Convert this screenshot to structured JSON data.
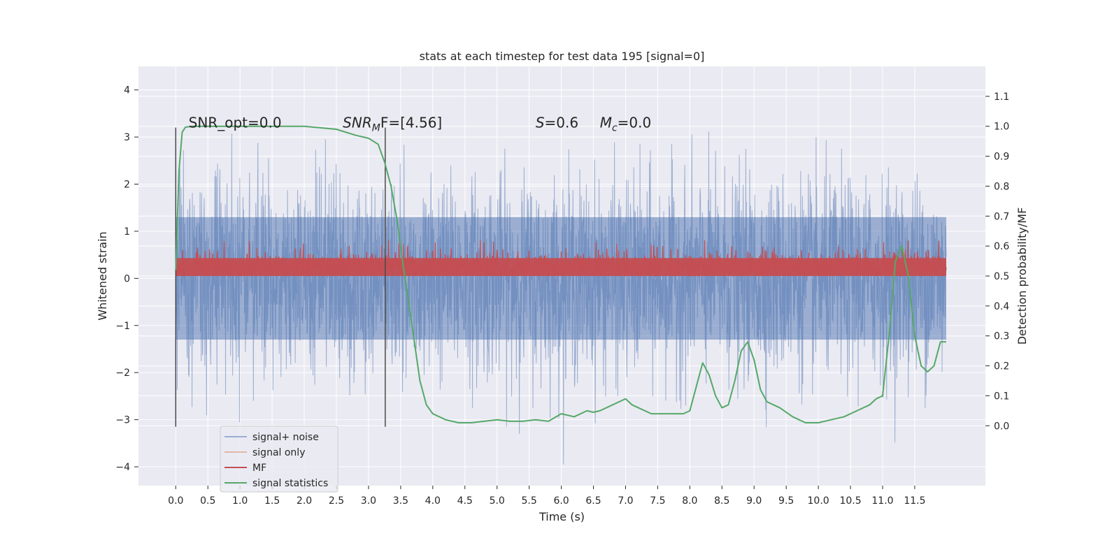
{
  "chart_data": {
    "type": "line",
    "title": "stats at each timestep for test data 195 [signal=0]",
    "xlabel": "Time (s)",
    "ylabel": "Whitened strain",
    "ylabel_right": "Detection probability/MF",
    "xlim": [
      -0.58,
      12.6
    ],
    "ylim": [
      -4.4,
      4.5
    ],
    "ylim_right": [
      -0.2,
      1.2
    ],
    "x_ticks": [
      0.0,
      0.5,
      1.0,
      1.5,
      2.0,
      2.5,
      3.0,
      3.5,
      4.0,
      4.5,
      5.0,
      5.5,
      6.0,
      6.5,
      7.0,
      7.5,
      8.0,
      8.5,
      9.0,
      9.5,
      10.0,
      10.5,
      11.0,
      11.5
    ],
    "x_tick_labels": [
      "0.0",
      "0.5",
      "1.0",
      "1.5",
      "2.0",
      "2.5",
      "3.0",
      "3.5",
      "4.0",
      "4.5",
      "5.0",
      "5.5",
      "6.0",
      "6.5",
      "7.0",
      "7.5",
      "8.0",
      "8.5",
      "9.0",
      "9.5",
      "10.0",
      "10.5",
      "11.0",
      "11.5"
    ],
    "y_ticks": [
      4,
      3,
      2,
      1,
      0,
      -1,
      -2,
      -3,
      -4
    ],
    "y_tick_labels": [
      "4",
      "3",
      "2",
      "1",
      "0",
      "−1",
      "−2",
      "−3",
      "−4"
    ],
    "y_right_ticks": [
      1.1,
      1.0,
      0.9,
      0.8,
      0.7,
      0.6,
      0.5,
      0.4,
      0.3,
      0.2,
      0.1,
      0.0
    ],
    "y_right_tick_labels": [
      "1.1",
      "1.0",
      "0.9",
      "0.8",
      "0.7",
      "0.6",
      "0.5",
      "0.4",
      "0.3",
      "0.2",
      "0.1",
      "0.0"
    ],
    "grid": true,
    "legend_position": "lower-left",
    "noise_range": [
      0.0,
      11.99
    ],
    "mf_range": [
      0.0,
      11.99
    ],
    "vertical_markers": [
      {
        "x": 0.0,
        "y": [
          -3.15,
          3.2
        ]
      },
      {
        "x": 3.26,
        "y": [
          -3.15,
          3.2
        ]
      }
    ],
    "annotations": [
      {
        "text": "SNR_opt=0.0",
        "x": 0.2,
        "y": 3.2
      },
      {
        "base": "SNR",
        "sub": "M",
        "tail": "F=[4.56]",
        "x": 2.6,
        "y": 3.2
      },
      {
        "base": "S",
        "tail": "=0.6",
        "x": 5.6,
        "y": 3.2
      },
      {
        "base": "M",
        "sub": "c",
        "tail": "=0.0",
        "x": 6.6,
        "y": 3.2
      }
    ],
    "series": [
      {
        "name": "signal+ noise",
        "color": "#4c72b0",
        "opacity": 0.5,
        "axis": "left",
        "style": "noise",
        "envelope": [
          -1.3,
          1.3
        ]
      },
      {
        "name": "signal only",
        "color": "#dd8452",
        "opacity": 0.5,
        "axis": "left",
        "values": []
      },
      {
        "name": "MF",
        "color": "#c44e52",
        "axis": "right",
        "style": "noise",
        "envelope": [
          0.5,
          0.56
        ]
      },
      {
        "name": "signal statistics",
        "color": "#55a868",
        "axis": "right",
        "x": [
          0.0,
          0.05,
          0.1,
          0.15,
          0.25,
          0.5,
          1.0,
          1.5,
          2.0,
          2.5,
          2.8,
          3.0,
          3.15,
          3.25,
          3.35,
          3.45,
          3.55,
          3.62,
          3.7,
          3.8,
          3.9,
          4.0,
          4.2,
          4.4,
          4.6,
          4.8,
          5.0,
          5.2,
          5.4,
          5.6,
          5.8,
          6.0,
          6.2,
          6.4,
          6.5,
          6.6,
          6.8,
          6.9,
          7.0,
          7.1,
          7.2,
          7.4,
          7.6,
          7.8,
          7.9,
          8.0,
          8.1,
          8.2,
          8.3,
          8.4,
          8.5,
          8.6,
          8.7,
          8.8,
          8.9,
          9.0,
          9.1,
          9.2,
          9.4,
          9.6,
          9.8,
          10.0,
          10.2,
          10.4,
          10.6,
          10.8,
          10.9,
          11.0,
          11.1,
          11.2,
          11.3,
          11.4,
          11.5,
          11.6,
          11.7,
          11.8,
          11.9,
          11.99
        ],
        "values": [
          0.52,
          0.85,
          0.98,
          0.997,
          1.0,
          1.0,
          1.0,
          1.0,
          1.0,
          0.99,
          0.97,
          0.96,
          0.94,
          0.88,
          0.8,
          0.68,
          0.52,
          0.42,
          0.3,
          0.15,
          0.07,
          0.04,
          0.02,
          0.01,
          0.01,
          0.015,
          0.02,
          0.015,
          0.015,
          0.02,
          0.015,
          0.04,
          0.03,
          0.05,
          0.045,
          0.05,
          0.07,
          0.08,
          0.09,
          0.07,
          0.06,
          0.04,
          0.04,
          0.04,
          0.04,
          0.05,
          0.13,
          0.21,
          0.17,
          0.1,
          0.06,
          0.07,
          0.15,
          0.25,
          0.28,
          0.22,
          0.12,
          0.08,
          0.06,
          0.03,
          0.01,
          0.01,
          0.02,
          0.03,
          0.05,
          0.07,
          0.09,
          0.1,
          0.3,
          0.55,
          0.6,
          0.5,
          0.3,
          0.2,
          0.18,
          0.2,
          0.28,
          0.28
        ]
      }
    ]
  }
}
